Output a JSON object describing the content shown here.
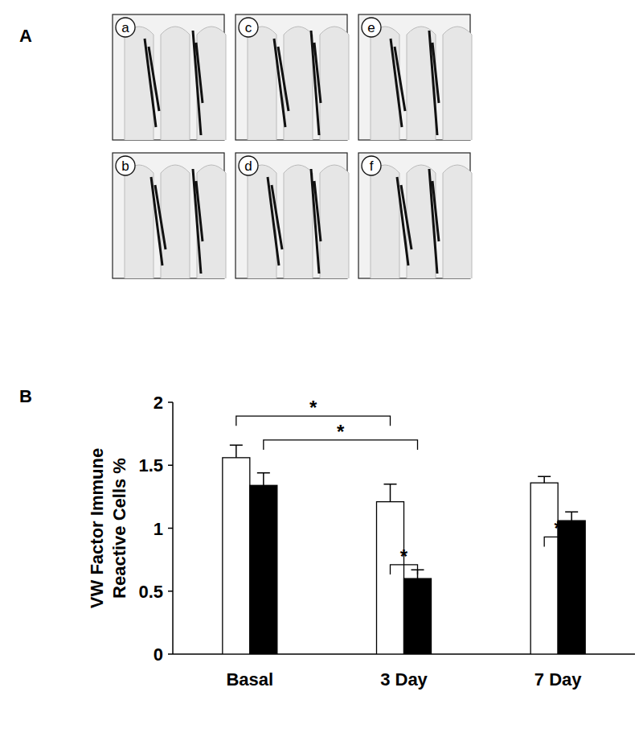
{
  "panel_a": {
    "label": "A",
    "images": [
      "a",
      "c",
      "e",
      "b",
      "d",
      "f"
    ]
  },
  "panel_b": {
    "label": "B"
  },
  "chart_data": {
    "type": "bar",
    "y_label": "VW Factor Immune\nReactive Cells %",
    "categories": [
      "Basal",
      "3 Day",
      "7 Day"
    ],
    "series": [
      {
        "color": "#ffffff",
        "values": [
          1.56,
          1.21,
          1.36
        ],
        "errors": [
          0.1,
          0.14,
          0.05
        ]
      },
      {
        "color": "#000000",
        "values": [
          1.34,
          0.6,
          1.06
        ],
        "errors": [
          0.1,
          0.07,
          0.07
        ]
      }
    ],
    "ylim": [
      0,
      2
    ],
    "yticks": [
      0,
      0.5,
      1,
      1.5,
      2
    ],
    "grid": false,
    "significance": [
      {
        "from": [
          0,
          0
        ],
        "to": [
          1,
          0
        ],
        "y": 1.89,
        "label": "*"
      },
      {
        "from": [
          0,
          1
        ],
        "to": [
          1,
          1
        ],
        "y": 1.7,
        "label": "*"
      },
      {
        "from": [
          1,
          0
        ],
        "to": [
          1,
          1
        ],
        "y": 0.71,
        "label": "*"
      },
      {
        "from": [
          2,
          0
        ],
        "to": [
          2,
          1
        ],
        "y": 0.93,
        "label": "*"
      }
    ]
  }
}
